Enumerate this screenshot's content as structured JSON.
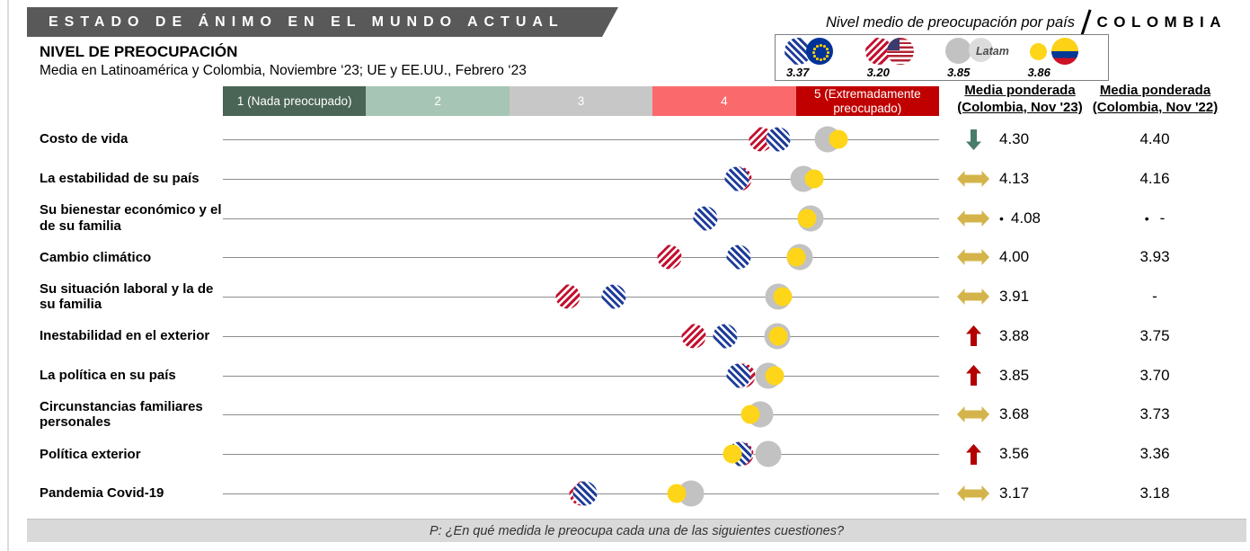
{
  "banner": {
    "title": "ESTADO DE ÁNIMO EN EL MUNDO ACTUAL",
    "country": "COLOMBIA"
  },
  "header": {
    "section_title": "NIVEL DE PREOCUPACIÓN",
    "subtitle": "Media en Latinoamérica y Colombia, Noviembre ‘23; UE y EE.UU., Febrero ‘23"
  },
  "legend": {
    "title": "Nivel medio de preocupación por país",
    "items": [
      {
        "id": "eu",
        "label": "Unión Europea",
        "value": "3.37"
      },
      {
        "id": "us",
        "label": "EE.UU.",
        "value": "3.20"
      },
      {
        "id": "latam",
        "label": "Latam",
        "value": "3.85"
      },
      {
        "id": "colombia",
        "label": "Colombia",
        "value": "3.86"
      }
    ]
  },
  "scale": {
    "segments": [
      {
        "label": "1 (Nada preocupado)",
        "color": "#4a6455"
      },
      {
        "label": "2",
        "color": "#a6c5b5"
      },
      {
        "label": "3",
        "color": "#c7c7c7"
      },
      {
        "label": "4",
        "color": "#fa6a6d"
      },
      {
        "label": "5 (Extremadamente preocupado)",
        "color": "#c00000"
      }
    ]
  },
  "columns": [
    {
      "line1": "Media ponderada",
      "line2": "(Colombia, Nov '23)"
    },
    {
      "line1": "Media ponderada",
      "line2": "(Colombia, Nov '22)"
    }
  ],
  "footer": {
    "question": "P: ¿En qué medida le preocupa cada una de las siguientes cuestiones?"
  },
  "colors": {
    "eu": "#1f3d99",
    "us": "#c41230",
    "latam": "#c2c2c2",
    "colombia": "#fed519",
    "trend_up": "#b30000",
    "trend_down": "#4a7c6a",
    "trend_flat": "#d4b44a",
    "line": "#8c8c8c"
  },
  "chart_data": {
    "type": "scatter",
    "title": "NIVEL DE PREOCUPACIÓN",
    "x_scale": {
      "min": 1,
      "max": 5,
      "labels": [
        "1 (Nada preocupado)",
        "2",
        "3",
        "4",
        "5 (Extremadamente preocupado)"
      ]
    },
    "legend_means": {
      "eu": 3.37,
      "us": 3.2,
      "latam": 3.85,
      "colombia": 3.86
    },
    "rows": [
      {
        "label": "Costo de vida",
        "markers": {
          "us": 3.76,
          "eu": 3.88,
          "latam": 4.22,
          "colombia": 4.3
        },
        "order": [
          "us",
          "eu",
          "latam",
          "colombia"
        ],
        "trend": "down",
        "now": "4.30",
        "prev": "4.40"
      },
      {
        "label": "La estabilidad de su país",
        "markers": {
          "us": 3.61,
          "eu": 3.59,
          "latam": 4.05,
          "colombia": 4.13
        },
        "order": [
          "us",
          "eu",
          "latam",
          "colombia"
        ],
        "trend": "flat",
        "now": "4.13",
        "prev": "4.16"
      },
      {
        "label": "Su bienestar económico y el de su familia",
        "markers": {
          "eu": 3.37,
          "latam": 4.1,
          "colombia": 4.08
        },
        "order": [
          "eu",
          "latam",
          "colombia"
        ],
        "trend": "flat",
        "now": "4.08",
        "now_note": "•",
        "prev": "-",
        "prev_note": "•"
      },
      {
        "label": "Cambio climático",
        "markers": {
          "us": 3.12,
          "eu": 3.6,
          "latam": 4.03,
          "colombia": 4.0
        },
        "order": [
          "us",
          "eu",
          "latam",
          "colombia"
        ],
        "trend": "flat",
        "now": "4.00",
        "prev": "3.93"
      },
      {
        "label": "Su situación laboral y la de su familia",
        "markers": {
          "us": 2.41,
          "eu": 2.73,
          "latam": 3.88,
          "colombia": 3.91
        },
        "order": [
          "us",
          "eu",
          "latam",
          "colombia"
        ],
        "trend": "flat",
        "now": "3.91",
        "prev": "-"
      },
      {
        "label": "Inestabilidad en el exterior",
        "markers": {
          "us": 3.29,
          "eu": 3.51,
          "latam": 3.87,
          "colombia": 3.88
        },
        "order": [
          "us",
          "eu",
          "latam",
          "colombia"
        ],
        "trend": "up",
        "now": "3.88",
        "prev": "3.75"
      },
      {
        "label": "La política en su país",
        "markers": {
          "us": 3.63,
          "eu": 3.6,
          "latam": 3.81,
          "colombia": 3.85
        },
        "order": [
          "us",
          "eu",
          "latam",
          "colombia"
        ],
        "trend": "up",
        "now": "3.85",
        "prev": "3.70"
      },
      {
        "label": "Circunstancias familiares personales",
        "markers": {
          "latam": 3.75,
          "colombia": 3.68
        },
        "order": [
          "latam",
          "colombia"
        ],
        "trend": "flat",
        "now": "3.68",
        "prev": "3.73"
      },
      {
        "label": "Política exterior",
        "markers": {
          "us": 3.62,
          "eu": 3.61,
          "latam": 3.81,
          "colombia": 3.56
        },
        "order": [
          "us",
          "eu",
          "latam",
          "colombia"
        ],
        "trend": "up",
        "now": "3.56",
        "prev": "3.36"
      },
      {
        "label": "Pandemia Covid-19",
        "markers": {
          "us": 2.5,
          "eu": 2.53,
          "latam": 3.27,
          "colombia": 3.17
        },
        "order": [
          "us",
          "eu",
          "latam",
          "colombia"
        ],
        "trend": "flat",
        "now": "3.17",
        "prev": "3.18"
      }
    ]
  }
}
